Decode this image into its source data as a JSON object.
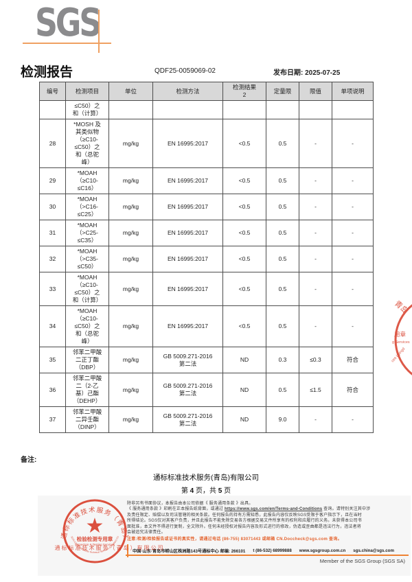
{
  "logo": {
    "text": "SGS"
  },
  "header": {
    "title": "检测报告",
    "report_no": "QDF25-0059069-02",
    "issue_date": "发布日期: 2025-07-25"
  },
  "table": {
    "columns": [
      "编号",
      "检测项目",
      "单位",
      "检测方法",
      "检测结果\n2",
      "定量限",
      "限值",
      "单项说明"
    ],
    "rows": [
      {
        "no": "",
        "item": "≤C50）之\n和（计算）",
        "unit": "",
        "method": "",
        "result": "",
        "loq": "",
        "limit": "",
        "note": ""
      },
      {
        "no": "28",
        "item": "*MOSH 及\n其类似物\n（≥C10-\n≤C50）之\n和（总驼\n峰）",
        "unit": "mg/kg",
        "method": "EN 16995:2017",
        "result": "<0.5",
        "loq": "0.5",
        "limit": "-",
        "note": "-"
      },
      {
        "no": "29",
        "item": "*MOAH\n（≥C10-\n≤C16）",
        "unit": "mg/kg",
        "method": "EN 16995:2017",
        "result": "<0.5",
        "loq": "0.5",
        "limit": "-",
        "note": "-"
      },
      {
        "no": "30",
        "item": "*MOAH\n（>C16-\n≤C25）",
        "unit": "mg/kg",
        "method": "EN 16995:2017",
        "result": "<0.5",
        "loq": "0.5",
        "limit": "-",
        "note": "-"
      },
      {
        "no": "31",
        "item": "*MOAH\n（>C25-\n≤C35）",
        "unit": "mg/kg",
        "method": "EN 16995:2017",
        "result": "<0.5",
        "loq": "0.5",
        "limit": "-",
        "note": "-"
      },
      {
        "no": "32",
        "item": "*MOAH\n（>C35-\n≤C50）",
        "unit": "mg/kg",
        "method": "EN 16995:2017",
        "result": "<0.5",
        "loq": "0.5",
        "limit": "-",
        "note": "-"
      },
      {
        "no": "33",
        "item": "*MOAH\n（≥C10-\n≤C50）之\n和（计算）",
        "unit": "mg/kg",
        "method": "EN 16995:2017",
        "result": "<0.5",
        "loq": "0.5",
        "limit": "-",
        "note": "-"
      },
      {
        "no": "34",
        "item": "*MOAH\n（≥C10-\n≤C50）之\n和（总驼\n峰）",
        "unit": "mg/kg",
        "method": "EN 16995:2017",
        "result": "<0.5",
        "loq": "0.5",
        "limit": "-",
        "note": "-"
      },
      {
        "no": "35",
        "item": "邻苯二甲酸\n二正丁酯\n（DBP）",
        "unit": "mg/kg",
        "method": "GB 5009.271-2016\n第二法",
        "result": "ND",
        "loq": "0.3",
        "limit": "≤0.3",
        "note": "符合"
      },
      {
        "no": "36",
        "item": "邻苯二甲酸\n二（2-乙\n基）己酯\n（DEHP）",
        "unit": "mg/kg",
        "method": "GB 5009.271-2016\n第二法",
        "result": "ND",
        "loq": "0.5",
        "limit": "≤1.5",
        "note": "符合"
      },
      {
        "no": "37",
        "item": "邻苯二甲酸\n二异壬酯\n（DINP）",
        "unit": "mg/kg",
        "method": "GB 5009.271-2016\n第二法",
        "result": "ND",
        "loq": "9.0",
        "limit": "-",
        "note": "-"
      }
    ]
  },
  "notes_label": "备注:",
  "company": {
    "name": "通标标准技术服务(青岛)有限公司",
    "page_prefix": "第 ",
    "page_num": "4",
    "page_mid": " 页，共 ",
    "page_total": "5",
    "page_suffix": " 页"
  },
  "footer": {
    "terms_line1": "除非另有书面协议，本报告由本公司依据《 服务通用条款 》出具。",
    "terms_line2_before": "《 服务通用条款 》印刷在正本报告纸背面，或通过 ",
    "terms_link": "https://www.sgs.com/en/Terms-and-Conditions",
    "terms_line2_after": " 查询。请特别关注其中涉",
    "terms_line3": "及责任限定、赔偿以及司法管辖的相关条款。任何报告的持有方需知悉，此报告内容仅反映SGS受限于客户指示下，且在当时",
    "terms_line4": "所得结论。SGS仅对其客户负责，并且此报告不能免除交易各方根据交易文件所享有的权利和应履行的义务。未获得本公司书",
    "terms_line5": "面批准，本文件不得进行复制，全文除外。任何未经授权对报告内容及形式进行的修改，伪造或歪曲都是违法行为，违法者将",
    "terms_line6": "会被追究法律责任。",
    "caution": "注意:检测/检验报告或证书的真实性，请通过电话 (86-755) 83071443 或邮箱 CN.Doccheck@sgs.com 查询。",
    "address": "中国·山东·青岛市崂山区株洲路143号通标中心  邮编: 266101",
    "phone": "t (86-532) 68999888",
    "website": "www.sgsgroup.com.cn",
    "email": "sgs.china@sgs.com",
    "member_line": "Member of the SGS Group (SGS SA)"
  },
  "stamps": {
    "left": {
      "ring_text": "通标标准技术服务（青岛）有限公司",
      "star": "★",
      "center_line1": "检验检测专用章",
      "center_line2": "Inspection & Testing Services",
      "bottom_arc_text": "SGS-CSTC Standards Technical Services (Qingdao) Co., Ltd.",
      "overlay_text": "通标标准技术服务（青岛）有限公司"
    },
    "right": {
      "fragments": [
        "青岛",
        "用章",
        "g Services",
        "ces (Qingd"
      ]
    }
  },
  "colors": {
    "brand_orange": "#ef8232",
    "stamp_red": "#d9432f",
    "caution_orange": "#e4632e",
    "logo_gray": "#8b8b8d",
    "table_header_bg": "#d8d8d8"
  }
}
